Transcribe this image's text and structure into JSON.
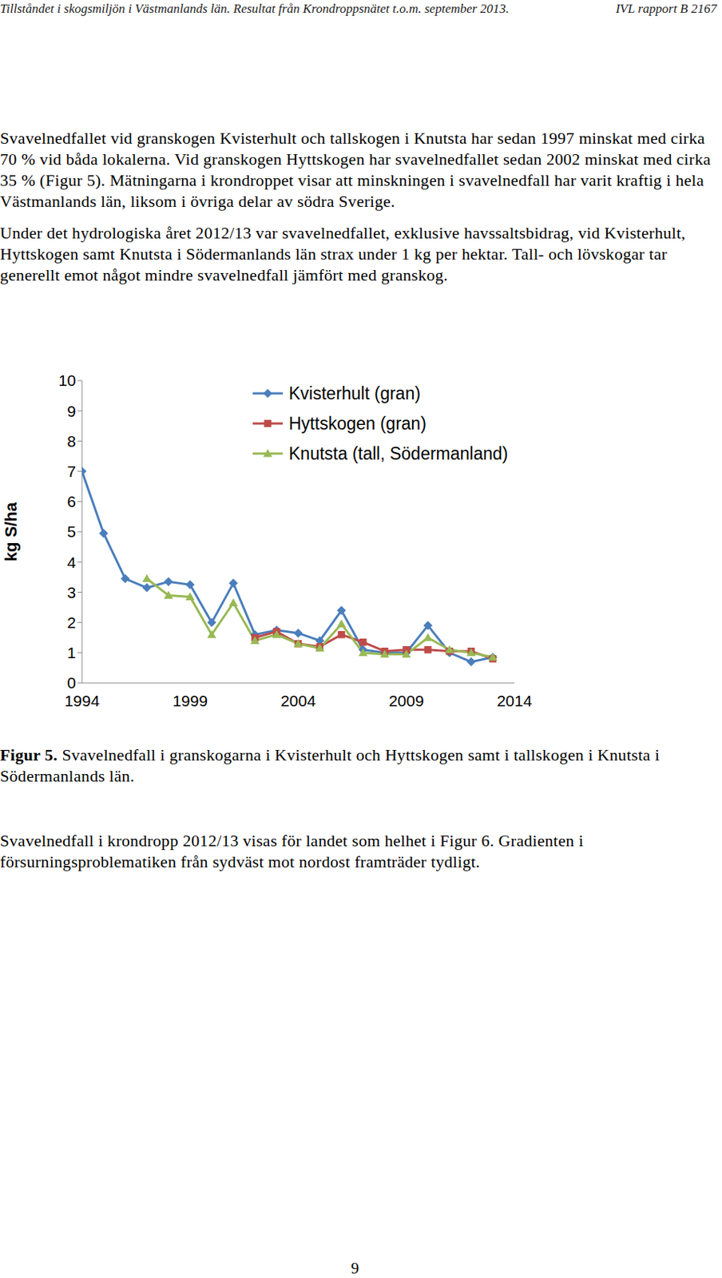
{
  "header": {
    "left": "Tillståndet i skogsmiljön i Västmanlands län. Resultat från Krondroppsnätet t.o.m. september 2013.",
    "right": "IVL rapport B 2167"
  },
  "paragraphs": [
    "Svavelnedfallet vid granskogen Kvisterhult och tallskogen i Knutsta har sedan 1997 minskat med cirka 70 % vid båda lokalerna. Vid granskogen Hyttskogen har svavelnedfallet sedan 2002 minskat med cirka 35 % (Figur 5). Mätningarna i krondroppet visar att minskningen i svavelnedfall har varit kraftig i hela Västmanlands län, liksom i övriga delar av södra Sverige.",
    "Under det hydrologiska året 2012/13 var svavelnedfallet, exklusive havssaltsbidrag, vid Kvisterhult, Hyttskogen samt Knutsta i Södermanlands län strax under 1 kg per hektar. Tall- och lövskogar tar generellt emot något mindre svavelnedfall jämfört med granskog."
  ],
  "chart_data": {
    "type": "line",
    "y_label": "kg S/ha",
    "x": [
      1994,
      1995,
      1996,
      1997,
      1998,
      1999,
      2000,
      2001,
      2002,
      2003,
      2004,
      2005,
      2006,
      2007,
      2008,
      2009,
      2010,
      2011,
      2012,
      2013
    ],
    "xlim": [
      1994,
      2014
    ],
    "xticks": [
      1994,
      1999,
      2004,
      2009,
      2014
    ],
    "ylim": [
      0,
      10
    ],
    "yticks": [
      0,
      1,
      2,
      3,
      4,
      5,
      6,
      7,
      8,
      9,
      10
    ],
    "grid": false,
    "legend": "top right",
    "series": [
      {
        "name": "Kvisterhult (gran)",
        "color": "#4a7ebb",
        "marker": "diamond",
        "values": [
          7.0,
          4.95,
          3.45,
          3.15,
          3.35,
          3.25,
          2.0,
          3.3,
          1.6,
          1.75,
          1.65,
          1.4,
          2.4,
          1.1,
          1.0,
          1.0,
          1.9,
          1.0,
          0.7,
          0.85
        ]
      },
      {
        "name": "Hyttskogen (gran)",
        "color": "#be4b48",
        "marker": "square",
        "values": [
          null,
          null,
          null,
          null,
          null,
          null,
          null,
          null,
          1.5,
          1.7,
          1.3,
          1.2,
          1.6,
          1.35,
          1.05,
          1.1,
          1.1,
          1.05,
          1.05,
          0.8
        ]
      },
      {
        "name": "Knutsta (tall, Södermanland)",
        "color": "#98b954",
        "marker": "triangle",
        "values": [
          null,
          null,
          null,
          3.45,
          2.9,
          2.85,
          1.6,
          2.65,
          1.4,
          1.6,
          1.3,
          1.15,
          1.95,
          1.0,
          0.95,
          0.95,
          1.5,
          1.1,
          1.0,
          0.85
        ]
      }
    ]
  },
  "caption": {
    "label": "Figur 5.",
    "text": "Svavelnedfall i granskogarna i Kvisterhult och Hyttskogen samt i tallskogen i Knutsta i Södermanlands län."
  },
  "closing_paragraph": "Svavelnedfall i krondropp 2012/13 visas för landet som helhet i Figur 6. Gradienten i försurningsproblematiken från sydväst mot nordost framträder tydligt.",
  "page_number": "9"
}
